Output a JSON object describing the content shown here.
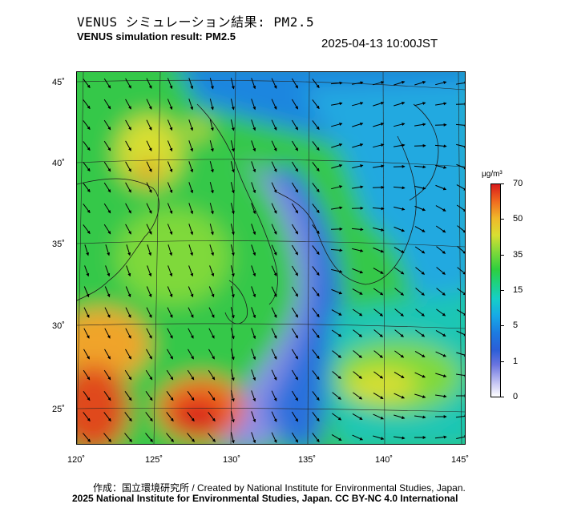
{
  "title_jp": "VENUS シミュレーション結果: PM2.5",
  "title_en": "VENUS simulation result: PM2.5",
  "timestamp": "2025-04-13 10:00JST",
  "map": {
    "latitude_labels": [
      "45˚",
      "40˚",
      "35˚",
      "30˚",
      "25˚"
    ],
    "longitude_labels": [
      "120˚",
      "125˚",
      "130˚",
      "135˚",
      "140˚",
      "145˚"
    ]
  },
  "colorbar": {
    "unit": "μg/m³",
    "labels": [
      "70",
      "50",
      "35",
      "15",
      "5",
      "1",
      "0"
    ],
    "colors": [
      "#ffffff",
      "#6a74e0",
      "#1c7be0",
      "#16cfc8",
      "#2fcf3e",
      "#d8de32",
      "#f06a1f",
      "#d81b1b"
    ]
  },
  "footer": {
    "credit": "作成：国立環境研究所 / Created by National Institute for Environmental Studies, Japan.",
    "license": "2025 National Institute for Environmental Studies, Japan. CC BY-NC 4.0 International"
  }
}
